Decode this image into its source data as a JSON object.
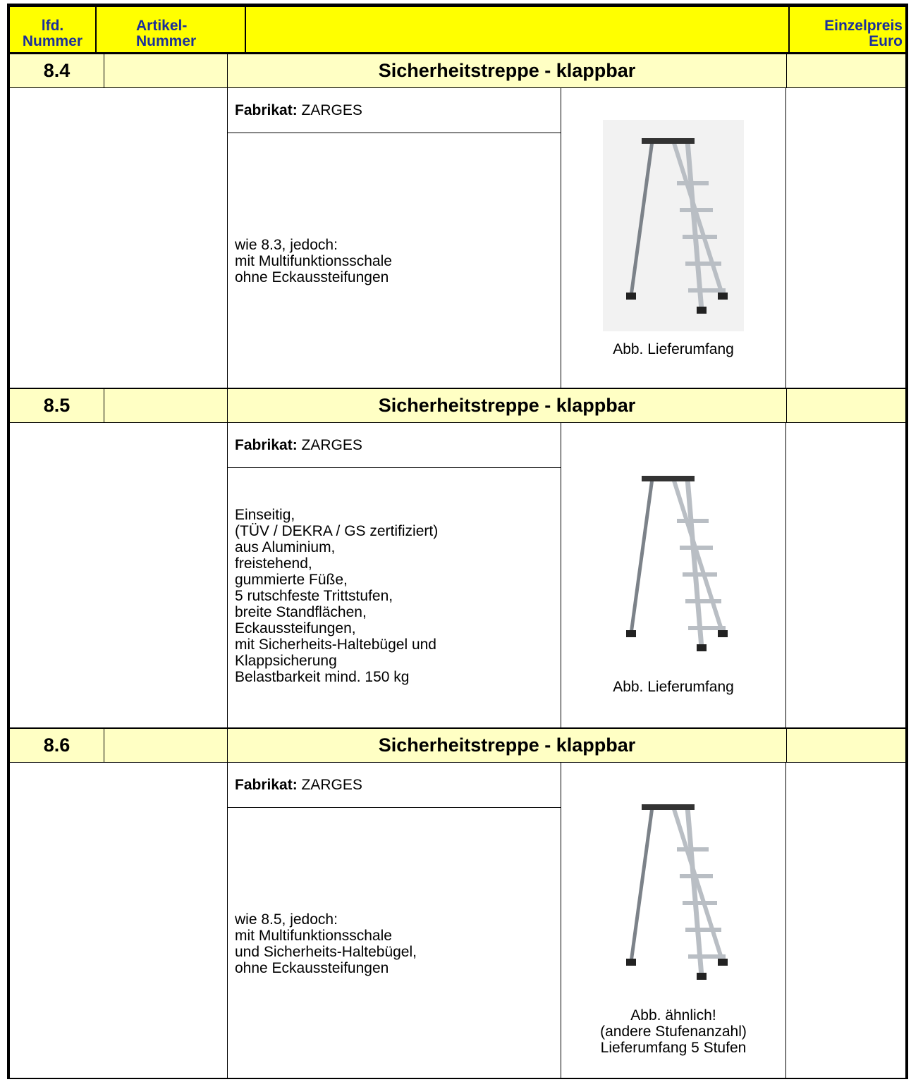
{
  "header": {
    "lfd": [
      "lfd.",
      "Nummer"
    ],
    "artikel": [
      "Artikel-",
      "Nummer"
    ],
    "preis": [
      "Einzelpreis",
      "Euro"
    ]
  },
  "items": [
    {
      "number": "8.4",
      "title": "Sicherheitstreppe - klappbar",
      "fabrikat_label": "Fabrikat:",
      "fabrikat": "ZARGES",
      "description": [
        "wie 8.3, jedoch:",
        "mit Multifunktionsschale",
        "ohne Eckaussteifungen"
      ],
      "caption": [
        "Abb. Lieferumfang"
      ]
    },
    {
      "number": "8.5",
      "title": "Sicherheitstreppe - klappbar",
      "fabrikat_label": "Fabrikat:",
      "fabrikat": "ZARGES",
      "description": [
        "Einseitig,",
        "(TÜV / DEKRA / GS zertifiziert)",
        "aus Aluminium,",
        "freistehend,",
        "gummierte Füße,",
        "5 rutschfeste Trittstufen,",
        "breite Standflächen,",
        "Eckaussteifungen,",
        "mit Sicherheits-Haltebügel und",
        "Klappsicherung",
        "Belastbarkeit mind. 150 kg"
      ],
      "caption": [
        "Abb. Lieferumfang"
      ]
    },
    {
      "number": "8.6",
      "title": "Sicherheitstreppe - klappbar",
      "fabrikat_label": "Fabrikat:",
      "fabrikat": "ZARGES",
      "description": [
        "wie 8.5, jedoch:",
        "mit Multifunktionsschale",
        "und Sicherheits-Haltebügel,",
        "ohne Eckaussteifungen"
      ],
      "caption": [
        "Abb. ähnlich!",
        "(andere Stufenanzahl)",
        "Lieferumfang 5 Stufen"
      ]
    }
  ]
}
